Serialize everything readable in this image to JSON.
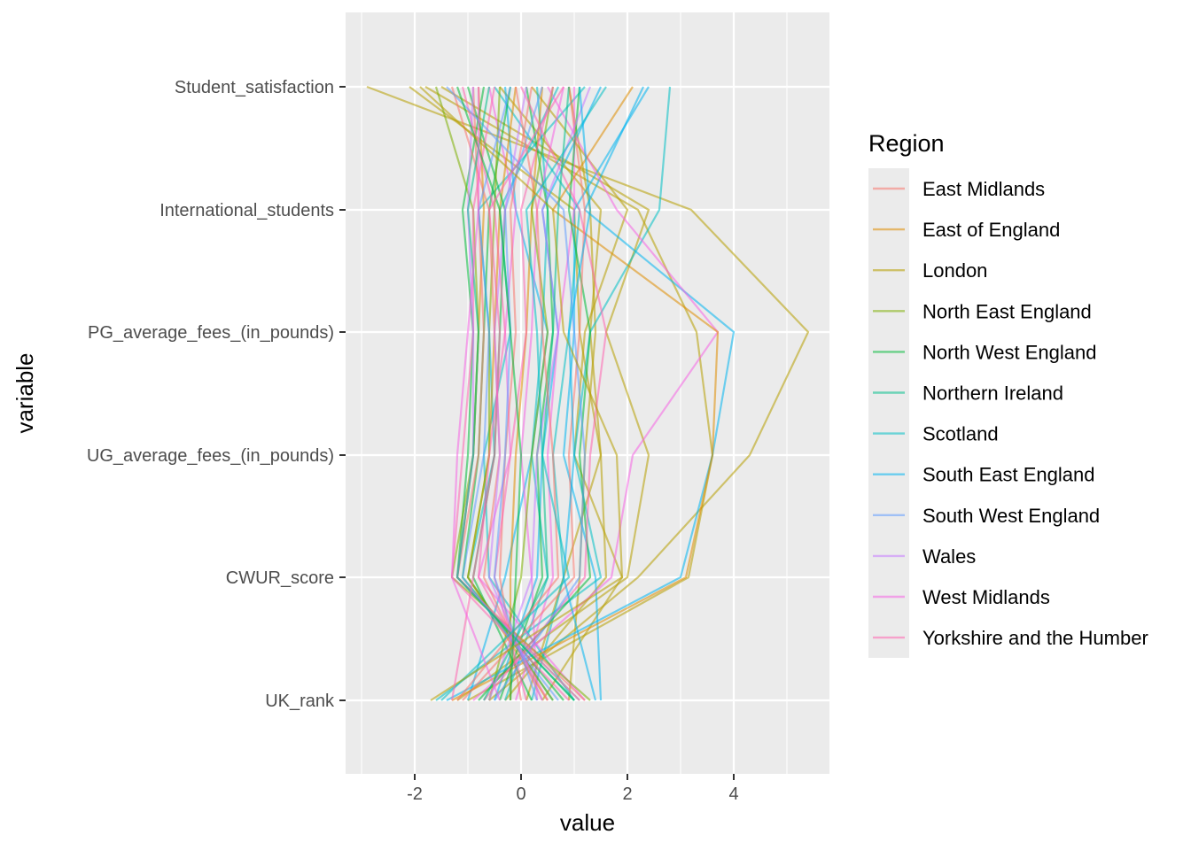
{
  "chart_data": {
    "type": "line",
    "title": "",
    "xlabel": "value",
    "ylabel": "variable",
    "xlim": [
      -3.3,
      5.8
    ],
    "x_ticks": [
      -2,
      0,
      2,
      4
    ],
    "x_tick_labels": [
      "-2",
      "0",
      "2",
      "4"
    ],
    "variables": [
      "Student_satisfaction",
      "International_students",
      "PG_average_fees_(in_pounds)",
      "UG_average_fees_(in_pounds)",
      "CWUR_score",
      "UK_rank"
    ],
    "grid": true,
    "line_opacity": 0.55,
    "legend": {
      "title": "Region",
      "position": "right",
      "entries": [
        {
          "name": "East Midlands",
          "color": "#F8766D"
        },
        {
          "name": "East of England",
          "color": "#DE8C00"
        },
        {
          "name": "London",
          "color": "#B79F00"
        },
        {
          "name": "North East England",
          "color": "#7CAE00"
        },
        {
          "name": "North West England",
          "color": "#00BA38"
        },
        {
          "name": "Northern Ireland",
          "color": "#00C08B"
        },
        {
          "name": "Scotland",
          "color": "#00BFC4"
        },
        {
          "name": "South East England",
          "color": "#00B4F0"
        },
        {
          "name": "South West England",
          "color": "#619CFF"
        },
        {
          "name": "Wales",
          "color": "#C77CFF"
        },
        {
          "name": "West Midlands",
          "color": "#F564E3"
        },
        {
          "name": "Yorkshire and the Humber",
          "color": "#FF64B0"
        }
      ]
    },
    "series": [
      {
        "region": "London",
        "values": [
          -2.9,
          3.2,
          5.4,
          4.3,
          2.2,
          -0.6
        ]
      },
      {
        "region": "London",
        "values": [
          -1.8,
          2.2,
          3.3,
          3.6,
          3.15,
          -1.0
        ]
      },
      {
        "region": "London",
        "values": [
          -1.5,
          2.4,
          1.6,
          2.4,
          2.0,
          -1.2
        ]
      },
      {
        "region": "London",
        "values": [
          -0.4,
          1.5,
          1.3,
          1.5,
          1.6,
          -0.3
        ]
      },
      {
        "region": "London",
        "values": [
          0.2,
          2.0,
          1.2,
          1.0,
          1.9,
          0.4
        ]
      },
      {
        "region": "London",
        "values": [
          -2.1,
          1.0,
          1.1,
          1.5,
          0.8,
          0.1
        ]
      },
      {
        "region": "London",
        "values": [
          0.9,
          1.3,
          1.4,
          1.2,
          1.1,
          0.9
        ]
      },
      {
        "region": "South East England",
        "values": [
          2.3,
          1.2,
          4.0,
          3.6,
          3.0,
          -1.4
        ]
      },
      {
        "region": "South East England",
        "values": [
          2.4,
          1.0,
          1.0,
          0.8,
          1.4,
          1.5
        ]
      },
      {
        "region": "South East England",
        "values": [
          -0.3,
          -0.1,
          0.5,
          0.2,
          -0.3,
          -1.0
        ]
      },
      {
        "region": "South East England",
        "values": [
          1.5,
          0.4,
          0.7,
          0.4,
          0.3,
          -0.5
        ]
      },
      {
        "region": "Scotland",
        "values": [
          2.8,
          2.6,
          1.3,
          1.0,
          1.5,
          -1.6
        ]
      },
      {
        "region": "Scotland",
        "values": [
          1.2,
          -0.8,
          -0.6,
          -0.5,
          -1.0,
          0.6
        ]
      },
      {
        "region": "Scotland",
        "values": [
          0.3,
          0.5,
          0.4,
          0.2,
          0.5,
          -0.3
        ]
      },
      {
        "region": "Scotland",
        "values": [
          -0.5,
          1.1,
          0.9,
          0.6,
          0.8,
          0.2
        ]
      },
      {
        "region": "Scotland",
        "values": [
          0.7,
          -0.4,
          -0.2,
          -0.7,
          -0.6,
          1.0
        ]
      },
      {
        "region": "West Midlands",
        "values": [
          0.5,
          1.8,
          3.7,
          2.1,
          1.7,
          -0.9
        ]
      },
      {
        "region": "West Midlands",
        "values": [
          1.0,
          1.0,
          0.7,
          0.5,
          0.6,
          -0.1
        ]
      },
      {
        "region": "West Midlands",
        "values": [
          -0.6,
          -0.1,
          -0.3,
          -0.2,
          -0.8,
          1.2
        ]
      },
      {
        "region": "West Midlands",
        "values": [
          0.8,
          0.3,
          0.2,
          0.0,
          0.2,
          0.3
        ]
      },
      {
        "region": "East of England",
        "values": [
          2.1,
          0.6,
          3.7,
          3.6,
          3.1,
          -1.3
        ]
      },
      {
        "region": "East of England",
        "values": [
          -0.1,
          -0.4,
          -0.5,
          -0.6,
          -1.0,
          0.5
        ]
      },
      {
        "region": "East of England",
        "values": [
          0.4,
          0.2,
          0.1,
          -0.1,
          -0.2,
          -0.2
        ]
      },
      {
        "region": "East of England",
        "values": [
          -0.8,
          -0.7,
          -0.8,
          -0.9,
          -1.2,
          1.1
        ]
      },
      {
        "region": "North West England",
        "values": [
          -0.7,
          -1.1,
          -0.9,
          -1.0,
          -1.2,
          1.0
        ]
      },
      {
        "region": "North West England",
        "values": [
          0.1,
          0.5,
          0.6,
          0.3,
          0.4,
          -0.4
        ]
      },
      {
        "region": "North West England",
        "values": [
          -0.2,
          -0.6,
          -0.7,
          -0.8,
          -1.1,
          0.8
        ]
      },
      {
        "region": "North West England",
        "values": [
          1.1,
          0.9,
          1.3,
          1.1,
          1.3,
          -0.8
        ]
      },
      {
        "region": "North West England",
        "values": [
          -1.0,
          -0.3,
          -0.4,
          -0.5,
          -0.9,
          0.2
        ]
      },
      {
        "region": "North East England",
        "values": [
          -1.6,
          -0.9,
          -0.8,
          -0.9,
          -1.3,
          1.3
        ]
      },
      {
        "region": "North East England",
        "values": [
          0.6,
          0.2,
          0.5,
          0.2,
          0.0,
          -0.6
        ]
      },
      {
        "region": "North East England",
        "values": [
          -0.4,
          -0.5,
          -0.6,
          -0.6,
          -1.0,
          0.6
        ]
      },
      {
        "region": "East Midlands",
        "values": [
          0.9,
          1.2,
          1.1,
          0.9,
          1.0,
          -1.1
        ]
      },
      {
        "region": "East Midlands",
        "values": [
          -0.9,
          -0.8,
          -0.7,
          -0.8,
          -1.2,
          1.2
        ]
      },
      {
        "region": "East Midlands",
        "values": [
          0.2,
          -0.2,
          -0.1,
          -0.3,
          -0.4,
          0.0
        ]
      },
      {
        "region": "East Midlands",
        "values": [
          -1.3,
          -0.6,
          -0.5,
          -0.4,
          -0.7,
          0.4
        ]
      },
      {
        "region": "Yorkshire and the Humber",
        "values": [
          0.0,
          1.1,
          1.6,
          1.3,
          1.2,
          -0.7
        ]
      },
      {
        "region": "Yorkshire and the Humber",
        "values": [
          -0.5,
          -0.9,
          -0.9,
          -1.1,
          -1.3,
          0.9
        ]
      },
      {
        "region": "Yorkshire and the Humber",
        "values": [
          0.6,
          0.0,
          0.1,
          -0.2,
          -0.5,
          0.1
        ]
      },
      {
        "region": "Yorkshire and the Humber",
        "values": [
          -1.1,
          -0.5,
          -0.3,
          -0.6,
          -0.8,
          0.5
        ]
      },
      {
        "region": "South West England",
        "values": [
          -0.2,
          -0.8,
          -0.6,
          -0.7,
          -1.1,
          0.7
        ]
      },
      {
        "region": "South West England",
        "values": [
          -1.4,
          0.8,
          1.0,
          1.2,
          1.1,
          -0.5
        ]
      },
      {
        "region": "South West England",
        "values": [
          0.4,
          -0.3,
          -0.2,
          -0.3,
          -0.5,
          0.3
        ]
      },
      {
        "region": "Wales",
        "values": [
          -0.9,
          -1.0,
          -0.9,
          -0.9,
          -1.2,
          1.1
        ]
      },
      {
        "region": "Wales",
        "values": [
          1.3,
          0.4,
          0.7,
          0.3,
          0.2,
          -0.6
        ]
      },
      {
        "region": "Wales",
        "values": [
          0.1,
          -0.3,
          -0.5,
          -0.4,
          -0.6,
          0.4
        ]
      },
      {
        "region": "Northern Ireland",
        "values": [
          -0.6,
          -1.0,
          -0.8,
          -0.9,
          -1.2,
          1.0
        ]
      },
      {
        "region": "Northern Ireland",
        "values": [
          0.9,
          0.7,
          0.6,
          0.4,
          0.5,
          -0.7
        ]
      },
      {
        "region": "East Midlands",
        "values": [
          -0.1,
          0.3,
          0.4,
          0.6,
          0.7,
          -1.2
        ]
      },
      {
        "region": "North West England",
        "values": [
          -1.2,
          -0.4,
          -0.2,
          0.0,
          -0.1,
          -0.2
        ]
      },
      {
        "region": "Scotland",
        "values": [
          1.6,
          0.1,
          0.3,
          0.4,
          0.9,
          -1.5
        ]
      },
      {
        "region": "London",
        "values": [
          -1.9,
          0.6,
          0.8,
          1.8,
          1.9,
          -1.7
        ]
      },
      {
        "region": "Yorkshire and the Humber",
        "values": [
          0.8,
          -0.6,
          -0.4,
          -0.5,
          -0.9,
          -1.3
        ]
      },
      {
        "region": "West Midlands",
        "values": [
          -0.8,
          -0.8,
          -1.0,
          -1.2,
          -1.3,
          -0.4
        ]
      },
      {
        "region": "South East England",
        "values": [
          1.1,
          1.3,
          0.9,
          1.0,
          0.8,
          1.4
        ]
      }
    ]
  }
}
